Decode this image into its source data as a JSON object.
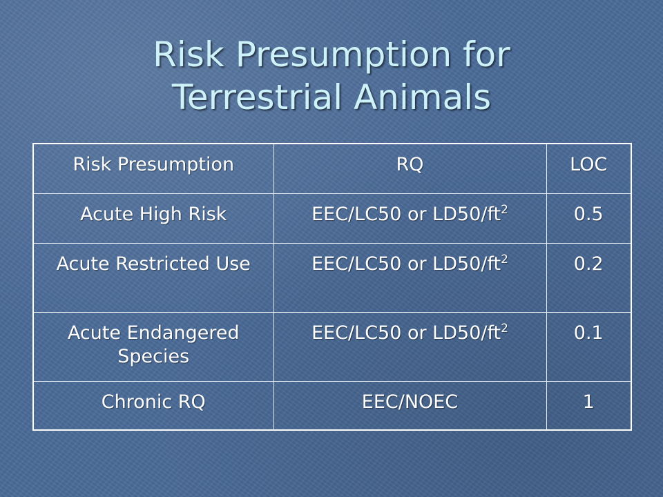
{
  "title": {
    "line1": "Risk Presumption for",
    "line2": "Terrestrial Animals"
  },
  "table": {
    "headers": [
      "Risk Presumption",
      "RQ",
      "LOC"
    ],
    "rows": [
      {
        "presumption": "Acute High Risk",
        "rq_main": "EEC/LC50 or LD50/ft",
        "rq_sup": "2",
        "loc": "0.5"
      },
      {
        "presumption": "Acute Restricted Use",
        "rq_main": "EEC/LC50 or LD50/ft",
        "rq_sup": "2",
        "loc": "0.2"
      },
      {
        "presumption": "Acute Endangered Species",
        "rq_main": "EEC/LC50 or LD50/ft",
        "rq_sup": "2",
        "loc": "0.1"
      },
      {
        "presumption": "Chronic RQ",
        "rq_main": "EEC/NOEC",
        "rq_sup": "",
        "loc": "1"
      }
    ]
  },
  "colors": {
    "background": "#4a6b98",
    "title": "#cdf2f9",
    "table_text": "#ffffff",
    "table_border": "#ffffff"
  }
}
